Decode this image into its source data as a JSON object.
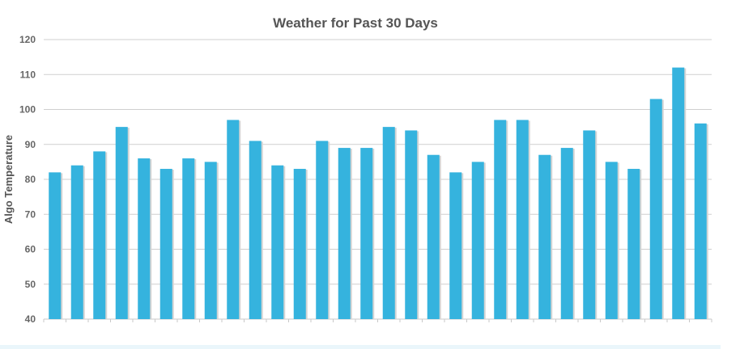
{
  "chart_data": {
    "type": "bar",
    "title": "Weather for Past 30 Days",
    "xlabel": "",
    "ylabel": "Algo Temperature",
    "ylim": [
      40,
      120
    ],
    "yticks": [
      40,
      50,
      60,
      70,
      80,
      90,
      100,
      110,
      120
    ],
    "grid": true,
    "legend": "none",
    "bar_color": "#35b3de",
    "values": [
      82,
      84,
      88,
      95,
      86,
      83,
      86,
      85,
      97,
      91,
      84,
      83,
      91,
      89,
      89,
      95,
      94,
      87,
      82,
      85,
      97,
      97,
      87,
      89,
      94,
      85,
      83,
      103,
      112,
      96
    ]
  }
}
